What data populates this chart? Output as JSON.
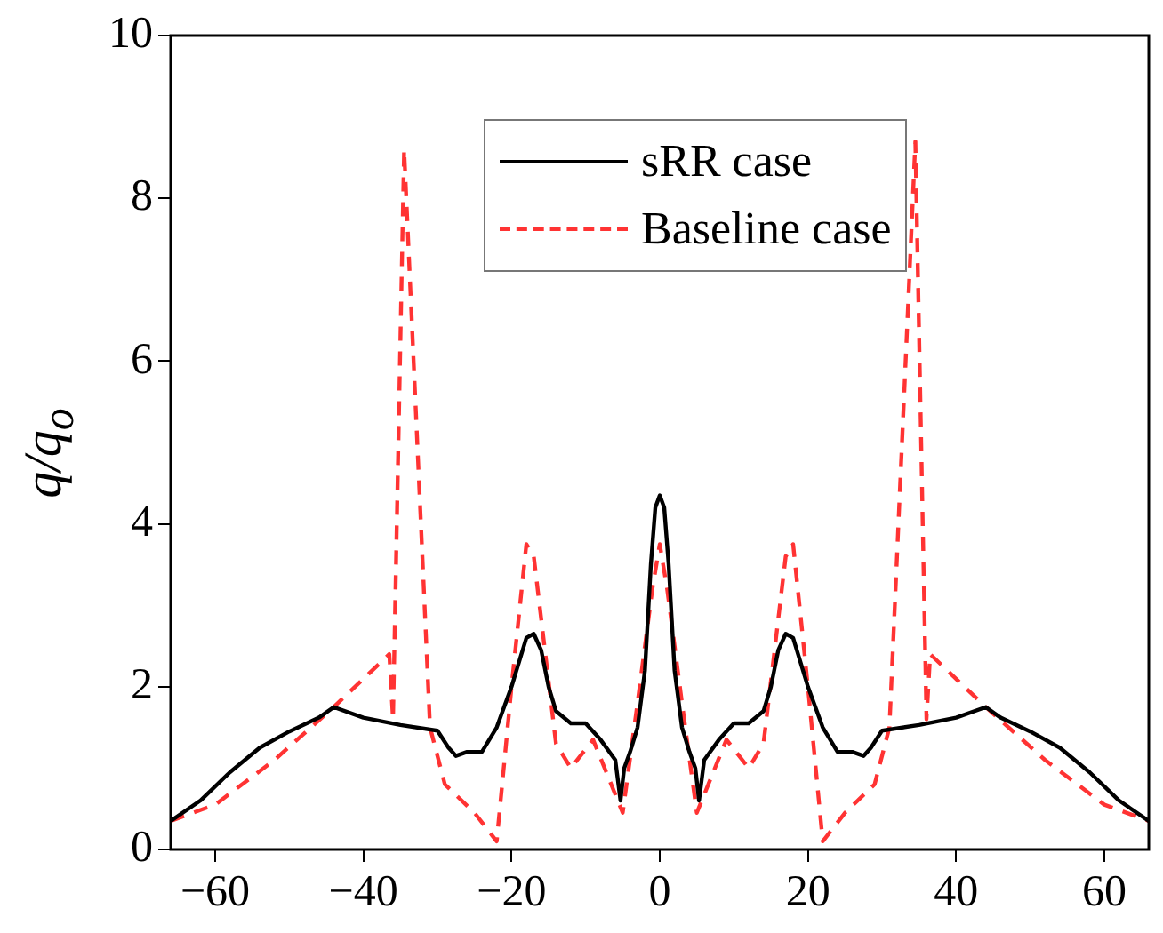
{
  "chart_data": {
    "type": "line",
    "ylabel": "q/q$_{o}$",
    "xlim": [
      -66,
      66
    ],
    "xticks": [
      -60,
      -40,
      -20,
      0,
      20,
      40,
      60
    ],
    "ylim": [
      0,
      10
    ],
    "yticks": [
      0,
      2,
      4,
      6,
      8,
      10
    ],
    "grid": false,
    "legend": "top",
    "marker": "none",
    "series": [
      {
        "name": "sRR case",
        "color": "#000000",
        "line_style": "solid",
        "x": [
          -66,
          -62,
          -58,
          -54,
          -50,
          -46,
          -44,
          -40,
          -35,
          -30,
          -28.5,
          -27.5,
          -26,
          -24,
          -22,
          -20,
          -18,
          -17,
          -16,
          -15,
          -14,
          -12,
          -10,
          -8,
          -6,
          -5.3,
          -4.8,
          -4,
          -3,
          -2,
          -1.2,
          -0.6,
          0,
          0.6,
          1.2,
          2,
          3,
          4,
          4.8,
          5.3,
          6,
          8,
          10,
          12,
          14,
          15,
          16,
          17,
          18,
          20,
          22,
          24,
          26,
          27.5,
          28.5,
          30,
          35,
          40,
          44,
          46,
          50,
          54,
          58,
          62,
          66
        ],
        "values": [
          0.35,
          0.6,
          0.95,
          1.25,
          1.45,
          1.62,
          1.75,
          1.62,
          1.53,
          1.46,
          1.25,
          1.15,
          1.2,
          1.2,
          1.5,
          2.0,
          2.6,
          2.65,
          2.45,
          2.0,
          1.7,
          1.55,
          1.55,
          1.35,
          1.1,
          0.6,
          1.0,
          1.2,
          1.5,
          2.2,
          3.5,
          4.2,
          4.35,
          4.2,
          3.5,
          2.2,
          1.5,
          1.2,
          1.0,
          0.6,
          1.1,
          1.35,
          1.55,
          1.55,
          1.7,
          2.0,
          2.45,
          2.65,
          2.6,
          2.0,
          1.5,
          1.2,
          1.2,
          1.15,
          1.25,
          1.46,
          1.53,
          1.62,
          1.75,
          1.62,
          1.45,
          1.25,
          0.95,
          0.6,
          0.35
        ]
      },
      {
        "name": "Baseline case",
        "color": "#ff3333",
        "line_style": "dashed",
        "x": [
          -66,
          -60,
          -52,
          -44,
          -36.5,
          -36,
          -34.5,
          -31,
          -29,
          -25,
          -22,
          -20,
          -18,
          -17,
          -14,
          -12,
          -9,
          -5,
          -3,
          -1,
          0,
          1,
          3,
          5,
          9,
          12,
          14,
          17,
          18,
          20,
          22,
          25,
          29,
          31,
          34.5,
          36,
          36.5,
          44,
          52,
          60,
          66
        ],
        "values": [
          0.35,
          0.55,
          1.1,
          1.75,
          2.4,
          1.6,
          8.6,
          1.5,
          0.8,
          0.45,
          0.1,
          2.0,
          3.75,
          3.6,
          1.3,
          1.0,
          1.35,
          0.45,
          1.8,
          3.2,
          3.75,
          3.2,
          1.8,
          0.45,
          1.35,
          1.0,
          1.3,
          3.6,
          3.75,
          2.0,
          0.1,
          0.45,
          0.8,
          1.5,
          8.7,
          1.6,
          2.4,
          1.75,
          1.1,
          0.55,
          0.35
        ]
      }
    ]
  }
}
